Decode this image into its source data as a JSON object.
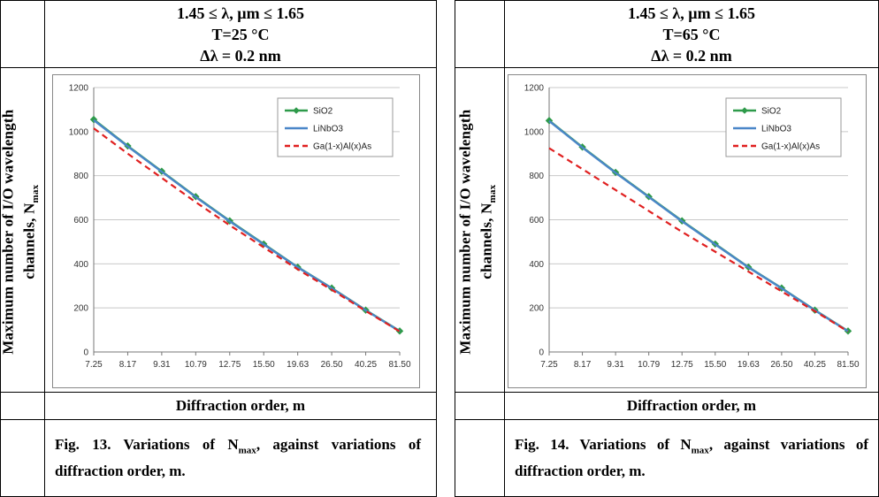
{
  "panels": [
    {
      "header": {
        "line1": "1.45 ≤ λ, µm ≤ 1.65",
        "line2": "T=25 °C",
        "line3": "Δλ = 0.2 nm"
      },
      "ylabel": {
        "main": "Maximum number of I/O wavelength",
        "line2": "channels, N",
        "sub": "max"
      },
      "xlabel": "Diffraction order, m",
      "caption": {
        "prefix": "Fig. 13. Variations of   N",
        "sub": "max",
        "suffix": ", against variations of diffraction order, m."
      }
    },
    {
      "header": {
        "line1": "1.45 ≤ λ, µm ≤ 1.65",
        "line2": "T=65 °C",
        "line3": "Δλ = 0.2 nm"
      },
      "ylabel": {
        "main": "Maximum number of I/O wavelength",
        "line2": "channels, N",
        "sub": "max"
      },
      "xlabel": "Diffraction order, m",
      "caption": {
        "prefix": "Fig. 14. Variations of   N",
        "sub": "max",
        "suffix": ", against variations of diffraction order, m."
      }
    }
  ],
  "chart_data": [
    {
      "type": "line",
      "title": "",
      "xlabel": "Diffraction order, m",
      "ylabel": "Maximum number of I/O wavelength channels, Nmax",
      "categories": [
        "7.25",
        "8.17",
        "9.31",
        "10.79",
        "12.75",
        "15.50",
        "19.63",
        "26.50",
        "40.25",
        "81.50"
      ],
      "ylim": [
        0,
        1200
      ],
      "yticks": [
        0,
        200,
        400,
        600,
        800,
        1000,
        1200
      ],
      "grid": true,
      "legend_position": "top-right",
      "series": [
        {
          "name": "SiO2",
          "color": "#2e9a4a",
          "style": "solid-marker",
          "values": [
            1055,
            935,
            820,
            705,
            595,
            490,
            385,
            290,
            190,
            95
          ]
        },
        {
          "name": "LiNbO3",
          "color": "#4a86c8",
          "style": "solid",
          "values": [
            1052,
            933,
            818,
            703,
            593,
            488,
            384,
            289,
            189,
            94
          ]
        },
        {
          "name": "Ga(1-x)Al(x)As",
          "color": "#e02020",
          "style": "dashed",
          "values": [
            1015,
            900,
            790,
            680,
            575,
            475,
            375,
            282,
            186,
            93
          ]
        }
      ]
    },
    {
      "type": "line",
      "title": "",
      "xlabel": "Diffraction order, m",
      "ylabel": "Maximum number of I/O wavelength channels, Nmax",
      "categories": [
        "7.25",
        "8.17",
        "9.31",
        "10.79",
        "12.75",
        "15.50",
        "19.63",
        "26.50",
        "40.25",
        "81.50"
      ],
      "ylim": [
        0,
        1200
      ],
      "yticks": [
        0,
        200,
        400,
        600,
        800,
        1000,
        1200
      ],
      "grid": true,
      "legend_position": "top-right",
      "series": [
        {
          "name": "SiO2",
          "color": "#2e9a4a",
          "style": "solid-marker",
          "values": [
            1050,
            930,
            815,
            705,
            595,
            490,
            385,
            290,
            190,
            95
          ]
        },
        {
          "name": "LiNbO3",
          "color": "#4a86c8",
          "style": "solid",
          "values": [
            1048,
            928,
            813,
            703,
            593,
            488,
            384,
            289,
            189,
            94
          ]
        },
        {
          "name": "Ga(1-x)Al(x)As",
          "color": "#e02020",
          "style": "dashed",
          "values": [
            925,
            830,
            735,
            640,
            545,
            455,
            365,
            275,
            185,
            93
          ]
        }
      ]
    }
  ]
}
